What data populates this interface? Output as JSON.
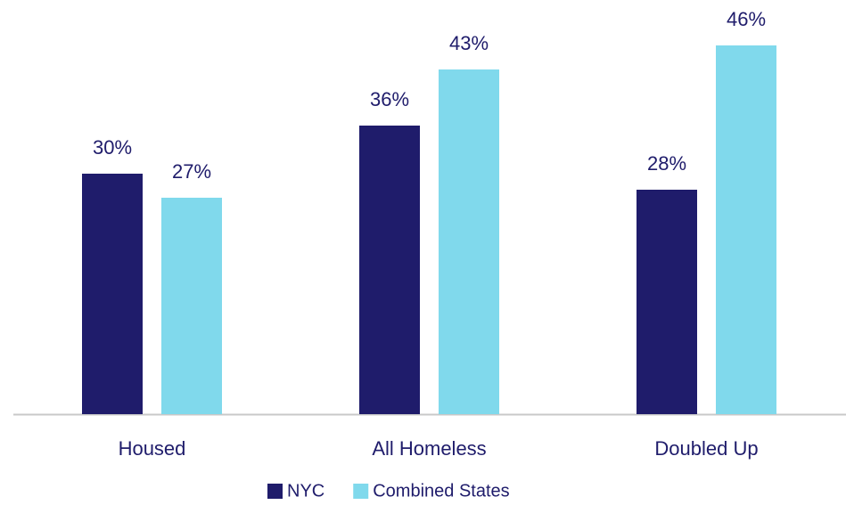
{
  "chart_data": {
    "type": "bar",
    "categories": [
      "Housed",
      "All Homeless",
      "Doubled Up"
    ],
    "series": [
      {
        "name": "NYC",
        "color": "#1f1c6b",
        "values": [
          30,
          36,
          28
        ],
        "value_labels": [
          "30%",
          "36%",
          "28%"
        ]
      },
      {
        "name": "Combined States",
        "color": "#80d9ec",
        "values": [
          27,
          43,
          46
        ],
        "value_labels": [
          "27%",
          "43%",
          "46%"
        ]
      }
    ],
    "legend": "bottom"
  }
}
